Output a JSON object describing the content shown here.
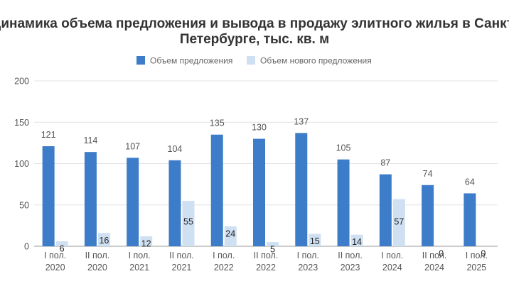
{
  "chart_data": {
    "type": "bar",
    "title_lines": [
      "Динамика объема предложения и вывода в продажу элитного жилья в Санкт-",
      "Петербурге, тыс. кв. м"
    ],
    "categories": [
      [
        "I пол.",
        "2020"
      ],
      [
        "II пол.",
        "2020"
      ],
      [
        "I пол.",
        "2021"
      ],
      [
        "II пол.",
        "2021"
      ],
      [
        "I пол.",
        "2022"
      ],
      [
        "II пол.",
        "2022"
      ],
      [
        "I пол.",
        "2023"
      ],
      [
        "II пол.",
        "2023"
      ],
      [
        "I пол.",
        "2024"
      ],
      [
        "II пол.",
        "2024"
      ],
      [
        "I пол.",
        "2025"
      ]
    ],
    "series": [
      {
        "name": "Объем предложения",
        "color": "#3d7cc9",
        "values": [
          121,
          114,
          107,
          104,
          135,
          130,
          137,
          105,
          87,
          74,
          64
        ]
      },
      {
        "name": "Объем нового предложения",
        "color": "#cfe0f3",
        "values": [
          6,
          16,
          12,
          55,
          24,
          5,
          15,
          14,
          57,
          0,
          0
        ]
      }
    ],
    "y_ticks": [
      0,
      50,
      100,
      150,
      200
    ],
    "ylim": [
      0,
      200
    ],
    "legend_position": "top-center",
    "grid": true
  }
}
